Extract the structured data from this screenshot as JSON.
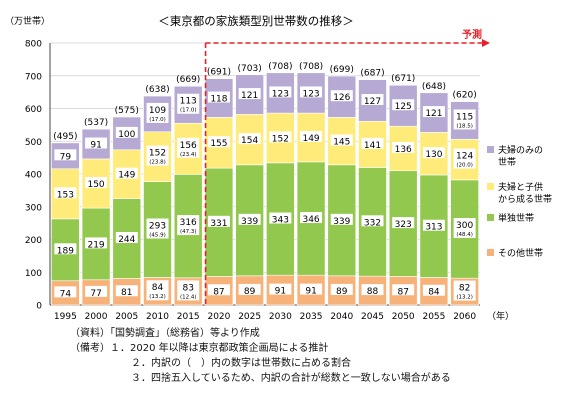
{
  "chart_data": {
    "type": "bar",
    "title": "＜東京都の家族類型別世帯数の推移＞",
    "ylabel": "（万世帯）",
    "xlabel": "（年）",
    "ylim": [
      0,
      800
    ],
    "yticks": [
      0,
      100,
      200,
      300,
      400,
      500,
      600,
      700,
      800
    ],
    "forecast_label": "予測",
    "categories": [
      "1995",
      "2000",
      "2005",
      "2010",
      "2015",
      "2020",
      "2025",
      "2030",
      "2035",
      "2040",
      "2045",
      "2050",
      "2055",
      "2060"
    ],
    "totals": [
      "(495)",
      "(537)",
      "(575)",
      "(638)",
      "(669)",
      "(691)",
      "(703)",
      "(708)",
      "(708)",
      "(699)",
      "(687)",
      "(671)",
      "(648)",
      "(620)"
    ],
    "series": [
      {
        "name": "その他世帯",
        "color": "#F7B27A",
        "values": [
          74,
          77,
          81,
          84,
          83,
          87,
          89,
          91,
          91,
          89,
          88,
          87,
          84,
          82
        ],
        "sublabels": [
          "",
          "",
          "",
          "(13.2)",
          "(12.4)",
          "",
          "",
          "",
          "",
          "",
          "",
          "",
          "",
          "(13.2)"
        ]
      },
      {
        "name": "単独世帯",
        "color": "#92C84E",
        "values": [
          189,
          219,
          244,
          293,
          316,
          331,
          339,
          343,
          346,
          339,
          332,
          323,
          313,
          300
        ],
        "sublabels": [
          "",
          "",
          "",
          "(45.9)",
          "(47.3)",
          "",
          "",
          "",
          "",
          "",
          "",
          "",
          "",
          "(48.4)"
        ]
      },
      {
        "name": "夫婦と子供から成る世帯",
        "color": "#FFEB7A",
        "values": [
          153,
          150,
          149,
          152,
          156,
          155,
          154,
          152,
          149,
          145,
          141,
          136,
          130,
          124
        ],
        "sublabels": [
          "",
          "",
          "",
          "(23.8)",
          "(23.4)",
          "",
          "",
          "",
          "",
          "",
          "",
          "",
          "",
          "(20.0)"
        ]
      },
      {
        "name": "夫婦のみの世帯",
        "color": "#B6A9D3",
        "values": [
          79,
          91,
          100,
          109,
          113,
          118,
          121,
          123,
          123,
          126,
          127,
          125,
          121,
          115
        ],
        "sublabels": [
          "",
          "",
          "",
          "(17.0)",
          "(17.0)",
          "",
          "",
          "",
          "",
          "",
          "",
          "",
          "",
          "(18.5)"
        ]
      }
    ],
    "legend": [
      {
        "lines": [
          "夫婦のみの",
          "世帯"
        ],
        "color": "#B6A9D3"
      },
      {
        "lines": [
          "夫婦と子供",
          "から成る世帯"
        ],
        "color": "#FFEB7A"
      },
      {
        "lines": [
          "単独世帯"
        ],
        "color": "#92C84E"
      },
      {
        "lines": [
          "その他世帯"
        ],
        "color": "#F7B27A"
      }
    ]
  },
  "notes": {
    "source": "（資料）「国勢調査」（総務省）等より作成",
    "remark1": "（備考）１．2020 年以降は東京都政策企画局による推計",
    "remark2": "２．内訳の（　）内の数字は世帯数に占める割合",
    "remark3": "３．四捨五入しているため、内訳の合計が総数と一致しない場合がある"
  }
}
